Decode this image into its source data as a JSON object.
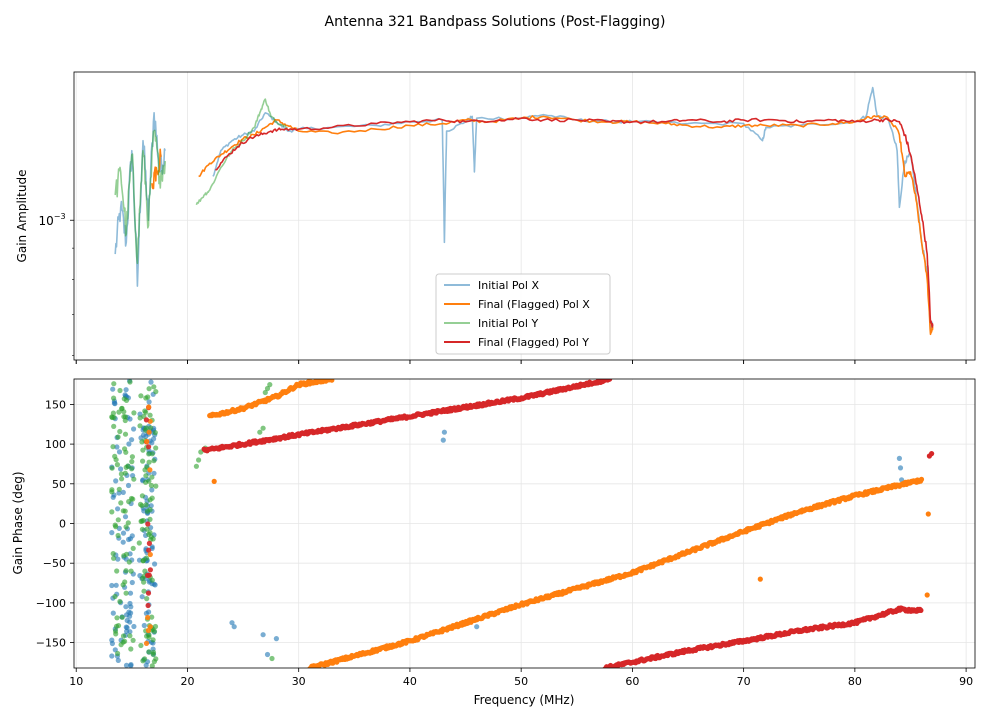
{
  "figure_title": "Antenna 321 Bandpass Solutions (Post-Flagging)",
  "colors": {
    "initial_x": "#1f77b4",
    "final_x": "#ff7f0e",
    "initial_y": "#2ca02c",
    "final_y": "#d62728",
    "grid": "#e6e6e6",
    "axis": "#000000"
  },
  "chart_data": [
    {
      "id": "amplitude",
      "type": "line",
      "ylabel": "Gain Amplitude",
      "xlabel": "",
      "yscale": "log",
      "xlim": [
        9.8,
        90.8
      ],
      "ylim": [
        0.00059,
        0.00175
      ],
      "x_ticks": [
        10,
        20,
        30,
        40,
        50,
        60,
        70,
        80,
        90
      ],
      "y_ticks": [
        {
          "value": 0.001,
          "label": "10",
          "exponent": "−3"
        }
      ],
      "legend": {
        "position": "lower-center",
        "entries": [
          "Initial Pol X",
          "Final (Flagged) Pol X",
          "Initial Pol Y",
          "Final (Flagged) Pol Y"
        ]
      },
      "series": [
        {
          "name": "Initial Pol X",
          "color_key": "initial_x",
          "alpha": 0.5,
          "x": [
            13.5,
            14.0,
            14.5,
            15.0,
            15.5,
            16.0,
            16.5,
            17.0,
            17.5,
            18.0,
            null,
            22.3,
            23.0,
            24.0,
            25.0,
            26.0,
            27.0,
            28.0,
            29.0,
            30.0,
            33.0,
            37.0,
            40.0,
            42.9,
            43.1,
            43.3,
            45.0,
            45.6,
            45.8,
            46.0,
            50.0,
            52.0,
            55.0,
            58.0,
            60.0,
            65.0,
            70.0,
            71.7,
            72.0,
            75.0,
            80.0,
            81.0,
            81.6,
            82.0,
            83.0,
            83.8,
            84.0,
            84.5,
            85.0,
            85.5,
            86.0,
            86.5,
            86.8,
            87.0
          ],
          "y": [
            0.00088,
            0.00105,
            0.00092,
            0.0013,
            0.00078,
            0.00135,
            0.001,
            0.0015,
            0.0012,
            0.0013,
            null,
            0.00118,
            0.0013,
            0.00135,
            0.00138,
            0.0014,
            0.0015,
            0.00145,
            0.0014,
            0.00141,
            0.00142,
            0.00143,
            0.00145,
            0.00146,
            0.00092,
            0.0014,
            0.00145,
            0.00148,
            0.0012,
            0.00147,
            0.00147,
            0.00149,
            0.00146,
            0.00145,
            0.00145,
            0.00144,
            0.00144,
            0.00135,
            0.00142,
            0.00143,
            0.00145,
            0.00148,
            0.00165,
            0.00148,
            0.00147,
            0.0013,
            0.00105,
            0.00125,
            0.00128,
            0.0011,
            0.00092,
            0.00082,
            0.00066,
            0.00068
          ]
        },
        {
          "name": "Final (Flagged) Pol X",
          "color_key": "final_x",
          "alpha": 1,
          "x": [
            16.8,
            17.2,
            17.6,
            null,
            21.0,
            22.0,
            23.0,
            24.0,
            25.0,
            26.0,
            27.0,
            28.0,
            29.0,
            30.0,
            33.0,
            37.0,
            40.0,
            43.0,
            45.0,
            47.0,
            50.0,
            52.0,
            55.0,
            58.0,
            60.0,
            63.0,
            65.0,
            68.0,
            70.0,
            72.0,
            75.0,
            78.0,
            80.0,
            81.0,
            82.0,
            83.0,
            84.0,
            84.5,
            85.0,
            85.5,
            86.0,
            86.5,
            86.8,
            87.0
          ],
          "y": [
            0.00115,
            0.00122,
            0.00127,
            null,
            0.00118,
            0.00124,
            0.00128,
            0.00132,
            0.00136,
            0.00138,
            0.00142,
            0.00146,
            0.00143,
            0.0014,
            0.00139,
            0.00141,
            0.00143,
            0.00144,
            0.00146,
            0.00145,
            0.00147,
            0.00148,
            0.00146,
            0.00145,
            0.00145,
            0.00144,
            0.00143,
            0.00142,
            0.00143,
            0.00143,
            0.00143,
            0.00144,
            0.00145,
            0.00147,
            0.00148,
            0.00147,
            0.00138,
            0.00118,
            0.0012,
            0.00108,
            0.00092,
            0.0008,
            0.00065,
            0.00067
          ]
        },
        {
          "name": "Initial Pol Y",
          "color_key": "initial_y",
          "alpha": 0.5,
          "x": [
            13.5,
            14.0,
            14.5,
            15.0,
            15.5,
            16.0,
            16.5,
            17.0,
            17.5,
            18.0,
            null,
            20.8,
            21.5,
            22.0,
            23.0,
            24.0,
            25.0,
            26.0,
            26.5,
            27.0,
            27.5,
            28.0,
            29.0
          ],
          "y": [
            0.0011,
            0.0012,
            0.00095,
            0.00128,
            0.00085,
            0.0013,
            0.00098,
            0.0014,
            0.00118,
            0.00125,
            null,
            0.00106,
            0.0011,
            0.00112,
            0.00122,
            0.0013,
            0.00135,
            0.00142,
            0.0015,
            0.00158,
            0.00148,
            0.00145,
            0.00142
          ]
        },
        {
          "name": "Final (Flagged) Pol Y",
          "color_key": "final_y",
          "alpha": 1,
          "x": [
            22.5,
            23.5,
            24.5,
            25.5,
            26.5,
            27.5,
            28.5,
            30.0,
            33.0,
            37.0,
            40.0,
            43.0,
            45.0,
            48.0,
            50.0,
            52.0,
            55.0,
            58.0,
            60.0,
            63.0,
            65.0,
            68.0,
            70.0,
            73.0,
            75.0,
            78.0,
            80.0,
            82.0,
            83.0,
            84.0,
            84.5,
            85.0,
            85.5,
            86.0,
            86.5,
            86.8,
            87.0
          ],
          "y": [
            0.00121,
            0.00127,
            0.00132,
            0.00136,
            0.00138,
            0.0014,
            0.00141,
            0.00141,
            0.00142,
            0.00144,
            0.00145,
            0.00146,
            0.00145,
            0.00146,
            0.00147,
            0.00146,
            0.00146,
            0.00145,
            0.00145,
            0.00145,
            0.00146,
            0.00145,
            0.00146,
            0.00146,
            0.00145,
            0.00146,
            0.00145,
            0.00146,
            0.00146,
            0.00145,
            0.00138,
            0.00128,
            0.00115,
            0.00102,
            0.00088,
            0.00068,
            0.00067
          ]
        }
      ]
    },
    {
      "id": "phase",
      "type": "scatter",
      "ylabel": "Gain Phase (deg)",
      "xlabel": "Frequency (MHz)",
      "xlim": [
        9.8,
        90.8
      ],
      "ylim": [
        -182,
        182
      ],
      "x_ticks": [
        10,
        20,
        30,
        40,
        50,
        60,
        70,
        80,
        90
      ],
      "y_ticks": [
        -150,
        -100,
        -50,
        0,
        50,
        100,
        150
      ],
      "series": [
        {
          "name": "Final (Flagged) Pol X",
          "color_key": "final_x",
          "segments": [
            {
              "x": [
                22.0,
                25.0,
                28.0,
                30.0,
                33.0
              ],
              "y": [
                135,
                145,
                160,
                175,
                182
              ]
            },
            {
              "x": [
                31.0,
                40.0,
                50.0,
                60.0,
                70.0,
                75.0,
                80.0,
                86.0
              ],
              "y": [
                -182,
                -148,
                -102,
                -62,
                -10,
                15,
                35,
                55
              ]
            }
          ],
          "outliers": {
            "x": [
              22.4,
              71.5,
              86.5,
              86.6
            ],
            "y": [
              53,
              -70,
              -90,
              12
            ]
          }
        },
        {
          "name": "Final (Flagged) Pol Y",
          "color_key": "final_y",
          "segments": [
            {
              "x": [
                21.5,
                25.0,
                30.0,
                40.0,
                50.0,
                58.0
              ],
              "y": [
                92,
                100,
                112,
                135,
                158,
                182
              ]
            },
            {
              "x": [
                57.5,
                65.0,
                70.0,
                75.0,
                80.0,
                84.0,
                86.0
              ],
              "y": [
                -182,
                -160,
                -148,
                -135,
                -125,
                -108,
                -110
              ]
            }
          ],
          "outliers": {
            "x": [
              86.7,
              86.9
            ],
            "y": [
              85,
              88
            ]
          }
        },
        {
          "name": "Initial Pol X",
          "color_key": "initial_x",
          "x_range": [
            13.2,
            18.3
          ],
          "count": 170,
          "extra": {
            "x": [
              24.0,
              24.2,
              26.8,
              27.2,
              28.0,
              43.0,
              43.1,
              46.0,
              84.0,
              84.1,
              84.2
            ],
            "y": [
              -125,
              -130,
              -140,
              -165,
              -145,
              105,
              115,
              -130,
              82,
              70,
              55
            ]
          }
        },
        {
          "name": "Initial Pol Y",
          "color_key": "initial_y",
          "x_range": [
            13.2,
            18.3
          ],
          "count": 170,
          "extra": {
            "x": [
              20.8,
              21.0,
              21.2,
              21.6,
              26.5,
              26.8,
              27.0,
              27.2,
              27.4,
              27.6
            ],
            "y": [
              72,
              80,
              90,
              95,
              115,
              120,
              165,
              170,
              175,
              -170
            ]
          }
        }
      ]
    }
  ]
}
